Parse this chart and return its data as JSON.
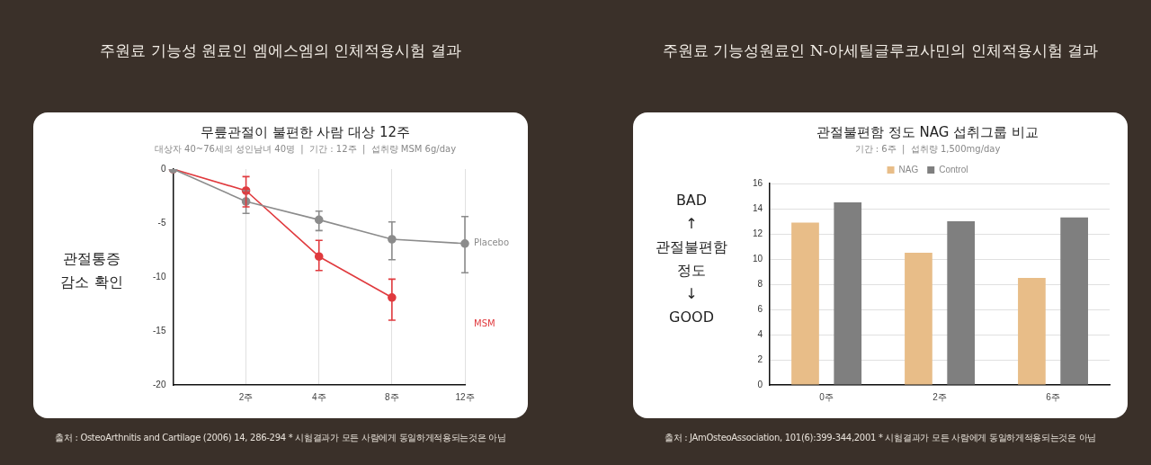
{
  "chart_data": [
    {
      "type": "line",
      "title": "무릎관절이 불편한 사람 대상 12주",
      "subtitle": "대상자 40~76세의 성인남녀 40명  |  기간 : 12주  |  섭취량 MSM 6g/day",
      "ylabel": "관절통증\n감소 확인",
      "annotations": [
        "주원료 기능성 원료인 엠에스엠의 인체적용시험 결과",
        "출처 : OsteoArthnitis and Cartilage (2006) 14, 286-294 * 시험결과가 모든 사람에게 동일하게적용되는것은 아님"
      ],
      "categories": [
        null,
        "2주",
        "4주",
        "8주",
        "12주"
      ],
      "series": [
        {
          "name": "Placebo",
          "color": "#8c8c8c",
          "values": [
            0,
            -3,
            -4.7,
            -6.5,
            -6.9
          ],
          "errors": [
            null,
            [
              -4.1,
              -2
            ],
            [
              -5.7,
              -3.9
            ],
            [
              -8.4,
              -4.9
            ],
            [
              -9.6,
              -4.4
            ]
          ]
        },
        {
          "name": "MSM",
          "color": "#e03a3e",
          "values": [
            0,
            -2,
            -8.1,
            -11.9,
            null
          ],
          "errors": [
            null,
            [
              -3.5,
              -0.7
            ],
            [
              -9.4,
              -6.6
            ],
            [
              -14,
              -10.2
            ],
            null
          ]
        }
      ],
      "ylim": [
        -20,
        0
      ],
      "yticks": [
        0,
        -5,
        -10,
        -15,
        -20
      ],
      "grid": "x",
      "legend": false,
      "marker": "circle"
    },
    {
      "type": "bar",
      "title": "관절불편함 정도 NAG 섭취그룹 비교",
      "subtitle": "기간 : 6주  |  섭취량 1,500mg/day",
      "ylabel": "BAD\n↑\n관절불편함\n정도\n↓\nGOOD",
      "annotations": [
        "주원료 기능성원료인 N-아세틸글루코사민의 인체적용시험 결과",
        "출처 : JAmOsteoAssociation, 101(6):399-344,2001 * 시험결과가 모든 사람에게 동일하게적용되는것은 아님"
      ],
      "categories": [
        "0주",
        "2주",
        "6주"
      ],
      "series": [
        {
          "name": "NAG",
          "color": "#e8bd88",
          "values": [
            12.9,
            10.5,
            8.5
          ]
        },
        {
          "name": "Control",
          "color": "#7f7f7f",
          "values": [
            14.5,
            13,
            13.3
          ]
        }
      ],
      "ylim": [
        0,
        16
      ],
      "yticks": [
        0,
        2,
        4,
        6,
        8,
        10,
        12,
        14,
        16
      ],
      "grid": "y",
      "legend": "top"
    }
  ]
}
